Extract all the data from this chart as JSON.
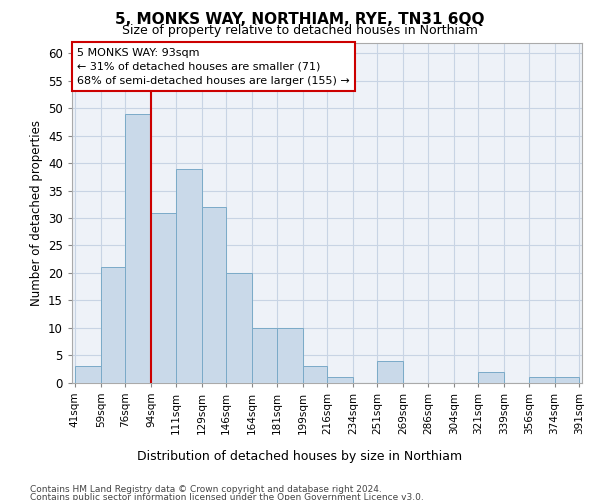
{
  "title": "5, MONKS WAY, NORTHIAM, RYE, TN31 6QQ",
  "subtitle": "Size of property relative to detached houses in Northiam",
  "xlabel": "Distribution of detached houses by size in Northiam",
  "ylabel": "Number of detached properties",
  "bar_values": [
    3,
    21,
    49,
    31,
    39,
    32,
    20,
    10,
    10,
    3,
    1,
    0,
    4,
    0,
    0,
    0,
    2,
    0,
    1,
    1
  ],
  "bin_edges": [
    41,
    59,
    76,
    94,
    111,
    129,
    146,
    164,
    181,
    199,
    216,
    234,
    251,
    269,
    286,
    304,
    321,
    339,
    356,
    374,
    391
  ],
  "bar_color": "#c9d9e9",
  "bar_edge_color": "#7aaac8",
  "grid_color": "#c8d4e4",
  "background_color": "#eef2f8",
  "red_line_x": 94,
  "annotation_line1": "5 MONKS WAY: 93sqm",
  "annotation_line2": "← 31% of detached houses are smaller (71)",
  "annotation_line3": "68% of semi-detached houses are larger (155) →",
  "annotation_box_color": "#cc0000",
  "ylim": [
    0,
    62
  ],
  "yticks": [
    0,
    5,
    10,
    15,
    20,
    25,
    30,
    35,
    40,
    45,
    50,
    55,
    60
  ],
  "footer_line1": "Contains HM Land Registry data © Crown copyright and database right 2024.",
  "footer_line2": "Contains public sector information licensed under the Open Government Licence v3.0."
}
